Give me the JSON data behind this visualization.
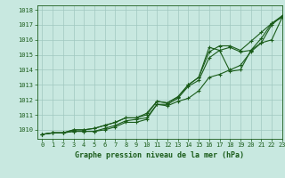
{
  "bg_color": "#c8e8e0",
  "grid_color": "#a0c8c0",
  "line_color": "#1a5c1a",
  "title": "Graphe pression niveau de la mer (hPa)",
  "xlim": [
    -0.5,
    23
  ],
  "ylim": [
    1009.4,
    1018.3
  ],
  "yticks": [
    1010,
    1011,
    1012,
    1013,
    1014,
    1015,
    1016,
    1017,
    1018
  ],
  "xticks": [
    0,
    1,
    2,
    3,
    4,
    5,
    6,
    7,
    8,
    9,
    10,
    11,
    12,
    13,
    14,
    15,
    16,
    17,
    18,
    19,
    20,
    21,
    22,
    23
  ],
  "series": [
    [
      1009.7,
      1009.8,
      1009.8,
      1009.9,
      1009.9,
      1009.9,
      1010.1,
      1010.3,
      1010.6,
      1010.7,
      1010.8,
      1011.7,
      1011.7,
      1012.1,
      1012.9,
      1013.3,
      1014.8,
      1015.3,
      1015.5,
      1015.2,
      1015.3,
      1015.8,
      1017.0,
      1017.6
    ],
    [
      1009.7,
      1009.8,
      1009.8,
      1009.9,
      1009.9,
      1009.9,
      1010.0,
      1010.2,
      1010.5,
      1010.5,
      1010.7,
      1011.7,
      1011.6,
      1011.9,
      1012.1,
      1012.6,
      1013.5,
      1013.7,
      1014.0,
      1014.3,
      1015.2,
      1015.8,
      1016.0,
      1017.5
    ],
    [
      1009.7,
      1009.8,
      1009.8,
      1010.0,
      1010.0,
      1010.1,
      1010.3,
      1010.5,
      1010.8,
      1010.8,
      1011.1,
      1011.9,
      1011.8,
      1012.2,
      1013.0,
      1013.5,
      1015.2,
      1015.6,
      1015.6,
      1015.3,
      1015.9,
      1016.5,
      1017.1,
      1017.6
    ],
    [
      1009.7,
      1009.8,
      1009.8,
      1010.0,
      1010.0,
      1010.1,
      1010.3,
      1010.5,
      1010.8,
      1010.8,
      1011.0,
      1011.9,
      1011.8,
      1012.2,
      1013.0,
      1013.5,
      1015.5,
      1015.3,
      1013.9,
      1014.0,
      1015.3,
      1016.1,
      1017.1,
      1017.5
    ]
  ]
}
